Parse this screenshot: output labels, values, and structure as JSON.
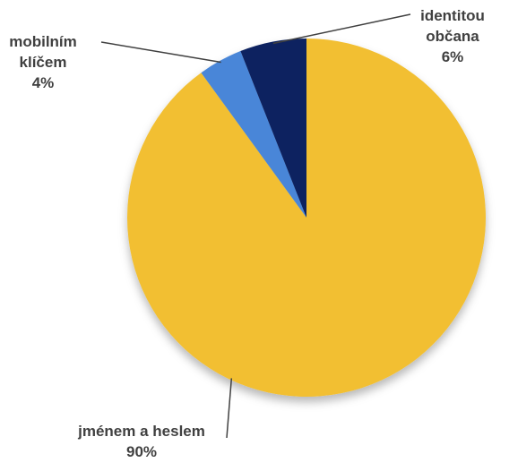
{
  "chart_data": {
    "type": "pie",
    "title": "",
    "slices": [
      {
        "label_lines": [
          "jménem a heslem"
        ],
        "value_label": "90%",
        "value": 90,
        "color": "#F2BF30"
      },
      {
        "label_lines": [
          "mobilním",
          "klíčem"
        ],
        "value_label": "4%",
        "value": 4,
        "color": "#4A86D8"
      },
      {
        "label_lines": [
          "identitou",
          "občana"
        ],
        "value_label": "6%",
        "value": 6,
        "color": "#0C2461"
      }
    ],
    "start_angle_deg": 0,
    "direction": "clockwise",
    "legend": "none"
  }
}
